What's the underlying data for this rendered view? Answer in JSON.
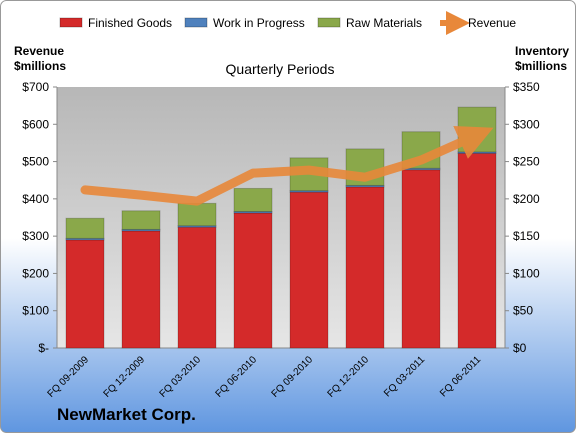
{
  "chart_data": {
    "type": "stacked-bar-line",
    "title": "Quarterly Periods",
    "y_label_lines": [
      "Revenue",
      "$millions"
    ],
    "y2_label_lines": [
      "Inventory",
      "$millions"
    ],
    "footer": "NewMarket Corp.",
    "categories": [
      "FQ 09-2009",
      "FQ 12-2009",
      "FQ 03-2010",
      "FQ 06-2010",
      "FQ 09-2010",
      "FQ 12-2010",
      "FQ 03-2011",
      "FQ 06-2011"
    ],
    "series": [
      {
        "name": "Finished Goods",
        "color": "#d42a2a",
        "axis": "y2",
        "values": [
          145,
          157,
          162,
          181,
          209,
          216,
          239,
          261
        ]
      },
      {
        "name": "Work in Progress",
        "color": "#4f81bd",
        "axis": "y2",
        "values": [
          2,
          2,
          2,
          2,
          2,
          2,
          2,
          2
        ]
      },
      {
        "name": "Raw Materials",
        "color": "#8aa84a",
        "axis": "y2",
        "values": [
          27,
          25,
          30,
          31,
          44,
          49,
          49,
          60
        ]
      },
      {
        "name": "Revenue",
        "color": "#e8883a",
        "axis": "y",
        "values": [
          424,
          410,
          394,
          469,
          477,
          458,
          504,
          571
        ]
      }
    ],
    "ylim": [
      0,
      700
    ],
    "yticks": [
      {
        "value": 0,
        "label": "$-"
      },
      {
        "value": 100,
        "label": "$100"
      },
      {
        "value": 200,
        "label": "$200"
      },
      {
        "value": 300,
        "label": "$300"
      },
      {
        "value": 400,
        "label": "$400"
      },
      {
        "value": 500,
        "label": "$500"
      },
      {
        "value": 600,
        "label": "$600"
      },
      {
        "value": 700,
        "label": "$700"
      }
    ],
    "y2lim": [
      0,
      350
    ],
    "y2ticks": [
      {
        "value": 0,
        "label": "$0"
      },
      {
        "value": 50,
        "label": "$50"
      },
      {
        "value": 100,
        "label": "$100"
      },
      {
        "value": 150,
        "label": "$150"
      },
      {
        "value": 200,
        "label": "$200"
      },
      {
        "value": 250,
        "label": "$250"
      },
      {
        "value": 300,
        "label": "$300"
      },
      {
        "value": 350,
        "label": "$350"
      }
    ],
    "grid": false
  }
}
